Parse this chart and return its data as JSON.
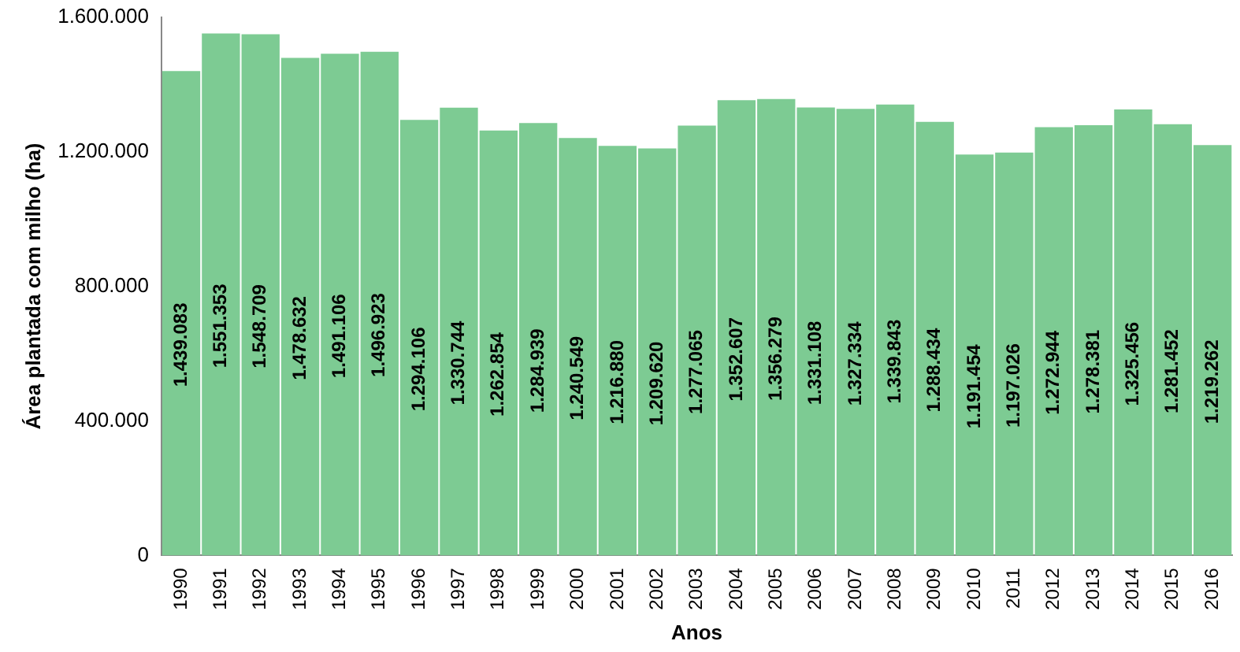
{
  "chart_data": {
    "type": "bar",
    "xlabel": "Anos",
    "ylabel": "Área plantada com milho (ha)",
    "categories": [
      "1990",
      "1991",
      "1992",
      "1993",
      "1994",
      "1995",
      "1996",
      "1997",
      "1998",
      "1999",
      "2000",
      "2001",
      "2002",
      "2003",
      "2004",
      "2005",
      "2006",
      "2007",
      "2008",
      "2009",
      "2010",
      "2011",
      "2012",
      "2013",
      "2014",
      "2015",
      "2016"
    ],
    "values": [
      1439083,
      1551353,
      1548709,
      1478632,
      1491106,
      1496923,
      1294106,
      1330744,
      1262854,
      1284939,
      1240549,
      1216880,
      1209620,
      1277065,
      1352607,
      1356279,
      1331108,
      1327334,
      1339843,
      1288434,
      1191454,
      1197026,
      1272944,
      1278381,
      1325456,
      1281452,
      1219262
    ],
    "value_labels": [
      "1.439.083",
      "1.551.353",
      "1.548.709",
      "1.478.632",
      "1.491.106",
      "1.496.923",
      "1.294.106",
      "1.330.744",
      "1.262.854",
      "1.284.939",
      "1.240.549",
      "1.216.880",
      "1.209.620",
      "1.277.065",
      "1.352.607",
      "1.356.279",
      "1.331.108",
      "1.327.334",
      "1.339.843",
      "1.288.434",
      "1.191.454",
      "1.197.026",
      "1.272.944",
      "1.278.381",
      "1.325.456",
      "1.281.452",
      "1.219.262"
    ],
    "color": "#7dcb93",
    "ylim": [
      0,
      1600000
    ],
    "yticks": [
      {
        "value": 0,
        "label": "0"
      },
      {
        "value": 400000,
        "label": "400.000"
      },
      {
        "value": 800000,
        "label": "800.000"
      },
      {
        "value": 1200000,
        "label": "1.200.000"
      },
      {
        "value": 1600000,
        "label": "1.600.000"
      }
    ],
    "grid": false,
    "legend": false
  }
}
